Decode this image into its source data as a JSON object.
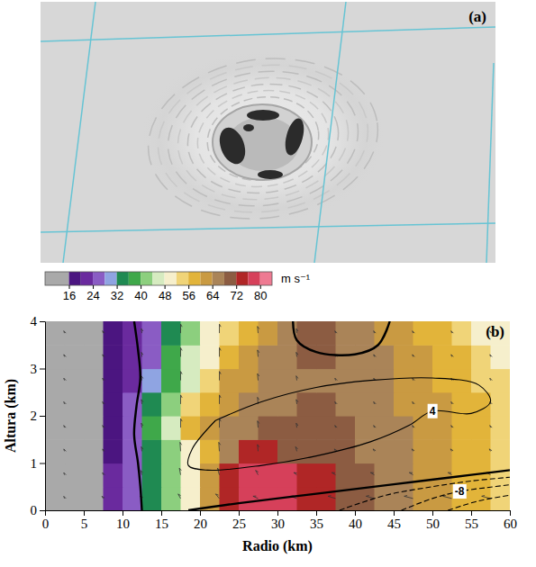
{
  "chart_data": [
    {
      "type": "image",
      "title": "(a)"
    },
    {
      "type": "heatmap",
      "title": "(b)",
      "xlabel": "Radio (km)",
      "ylabel": "Altura (km)",
      "xlim": [
        0,
        60
      ],
      "xticks": [
        0,
        5,
        10,
        15,
        20,
        25,
        30,
        35,
        40,
        45,
        50,
        55,
        60
      ],
      "ylim": [
        0,
        4
      ],
      "yticks": [
        0,
        1,
        2,
        3,
        4
      ],
      "grid": false,
      "x": [
        0,
        2.5,
        5,
        7.5,
        10,
        12.5,
        15,
        17.5,
        20,
        22.5,
        25,
        27.5,
        30,
        32.5,
        35,
        37.5,
        40,
        42.5,
        45,
        47.5,
        50,
        52.5,
        55,
        57.5,
        60
      ],
      "y": [
        0,
        0.5,
        1,
        1.5,
        2,
        2.5,
        3,
        3.5,
        4
      ],
      "z": [
        [
          6,
          10,
          14,
          20,
          26,
          34,
          42,
          50,
          62,
          74,
          78,
          78,
          77,
          75,
          73,
          70,
          68,
          66,
          64,
          62,
          60,
          58,
          56,
          54
        ],
        [
          6,
          10,
          14,
          20,
          26,
          34,
          42,
          50,
          62,
          74,
          78,
          78,
          77,
          74,
          73,
          71,
          69,
          67,
          65,
          63,
          61,
          59,
          57,
          55
        ],
        [
          6,
          9,
          13,
          18,
          24,
          32,
          40,
          48,
          58,
          66,
          72,
          73,
          71,
          70,
          69,
          68,
          67,
          66,
          64,
          62,
          60,
          58,
          56,
          54
        ],
        [
          6,
          9,
          12,
          18,
          26,
          36,
          46,
          56,
          60,
          64,
          66,
          68,
          68,
          68,
          68,
          68,
          67,
          66,
          64,
          62,
          60,
          58,
          56,
          54
        ],
        [
          6,
          9,
          12,
          18,
          24,
          32,
          42,
          52,
          58,
          62,
          64,
          66,
          67,
          68,
          68,
          67,
          66,
          64,
          63,
          62,
          60,
          58,
          56,
          54
        ],
        [
          6,
          9,
          12,
          18,
          22,
          28,
          38,
          46,
          54,
          60,
          63,
          65,
          66,
          67,
          67,
          66,
          65,
          64,
          62,
          60,
          58,
          56,
          54,
          52
        ],
        [
          6,
          9,
          12,
          18,
          22,
          26,
          36,
          44,
          50,
          56,
          60,
          64,
          66,
          68,
          68,
          66,
          65,
          64,
          62,
          60,
          58,
          56,
          54,
          50
        ],
        [
          6,
          9,
          12,
          18,
          22,
          26,
          34,
          42,
          48,
          54,
          58,
          62,
          65,
          68,
          68,
          66,
          64,
          62,
          60,
          58,
          56,
          54,
          50,
          48
        ]
      ],
      "colorbar": {
        "label": "m s⁻¹",
        "range": [
          8,
          84
        ],
        "ticks": [
          16,
          24,
          32,
          40,
          48,
          56,
          64,
          72,
          80
        ],
        "levels": [
          16,
          20,
          24,
          28,
          32,
          36,
          40,
          44,
          48,
          52,
          56,
          60,
          64,
          68,
          72,
          76,
          80
        ],
        "colors": [
          "#a9a9a9",
          "#4b1580",
          "#6a2a9e",
          "#8a5cc4",
          "#8fa4e2",
          "#1f8a52",
          "#3fa84a",
          "#8ccf7e",
          "#d6ebc0",
          "#f6efcc",
          "#f0d478",
          "#e2b43a",
          "#c99a42",
          "#aa8458",
          "#8c5c42",
          "#b02626",
          "#d6405a",
          "#ee7a92"
        ]
      },
      "contours": [
        {
          "value": 0,
          "line_style": "solid",
          "x": [
            12.5,
            12.3,
            12,
            11.5,
            11.8,
            12.3,
            12,
            11.5
          ],
          "y": [
            0,
            0.5,
            1,
            1.6,
            2.2,
            2.8,
            3.4,
            4
          ]
        },
        {
          "value": 0,
          "line_style": "solid",
          "x": [
            18.5,
            25,
            35,
            45,
            55,
            60
          ],
          "y": [
            0,
            0.15,
            0.35,
            0.55,
            0.75,
            0.85
          ]
        },
        {
          "value": 0,
          "line_style": "solid",
          "x": [
            32,
            32.5,
            35,
            40,
            43,
            44.5
          ],
          "y": [
            4,
            3.6,
            3.35,
            3.3,
            3.5,
            4
          ]
        },
        {
          "value": 4,
          "line_style": "solid",
          "data_labels": true,
          "x": [
            22,
            19,
            18.5,
            21,
            28,
            35,
            42,
            47,
            50,
            55,
            57.5,
            56,
            50,
            42,
            35,
            28,
            22
          ],
          "y": [
            1.9,
            1.3,
            0.95,
            0.85,
            0.95,
            1.15,
            1.45,
            1.8,
            2.1,
            2.05,
            2.3,
            2.65,
            2.8,
            2.75,
            2.6,
            2.3,
            1.9
          ]
        },
        {
          "value": -4,
          "line_style": "dashed",
          "x": [
            38,
            44,
            50,
            55,
            60
          ],
          "y": [
            0,
            0.32,
            0.5,
            0.62,
            0.7
          ]
        },
        {
          "value": -8,
          "line_style": "dashed",
          "data_labels": true,
          "x": [
            46,
            50,
            53.5,
            57,
            60
          ],
          "y": [
            0,
            0.25,
            0.4,
            0.48,
            0.54
          ]
        },
        {
          "value": -12,
          "line_style": "dashed",
          "x": [
            52,
            56,
            60
          ],
          "y": [
            0,
            0.2,
            0.32
          ]
        }
      ],
      "vectors": {
        "x": [
          2.5,
          7.5,
          12.5,
          17.5,
          22.5,
          27.5,
          32.5,
          37.5,
          42.5,
          47.5,
          52.5,
          57.5
        ],
        "y": [
          0.25,
          0.75,
          1.25,
          1.75,
          2.25,
          2.75,
          3.25,
          3.75
        ],
        "u": [
          [
            -1,
            -2,
            -3,
            -4,
            -6,
            -8,
            -10,
            -12,
            -13,
            -14,
            -14,
            -14
          ],
          [
            -1,
            -1,
            -2,
            -2,
            -3,
            -4,
            -5,
            -6,
            -6,
            -6,
            -6,
            -6
          ],
          [
            -1,
            -1,
            -1,
            -1,
            -1,
            -1,
            -2,
            -2,
            -2,
            -2,
            -2,
            -2
          ],
          [
            -1,
            -1,
            -1,
            0,
            0,
            -1,
            -1,
            -1,
            -1,
            -1,
            -1,
            -1
          ],
          [
            -1,
            -1,
            -1,
            0,
            0,
            -1,
            -1,
            -1,
            -1,
            -1,
            -1,
            -1
          ],
          [
            -1,
            -1,
            -1,
            0,
            0,
            -1,
            -1,
            -1,
            -1,
            -1,
            -1,
            -1
          ],
          [
            -1,
            -1,
            -1,
            0,
            0,
            -1,
            -1,
            -1,
            -1,
            -1,
            -1,
            -1
          ],
          [
            -1,
            -1,
            -1,
            0,
            0,
            -1,
            -1,
            -1,
            -1,
            -1,
            -1,
            -1
          ]
        ],
        "w": [
          [
            1,
            1,
            1,
            2,
            2,
            1,
            1,
            1,
            1,
            1,
            1,
            1
          ],
          [
            1,
            1,
            2,
            3,
            3,
            2,
            1,
            1,
            1,
            1,
            1,
            1
          ],
          [
            1,
            1,
            2,
            4,
            4,
            3,
            2,
            1,
            1,
            1,
            1,
            1
          ],
          [
            1,
            1,
            2,
            4,
            4,
            3,
            2,
            1,
            1,
            1,
            1,
            1
          ],
          [
            1,
            1,
            2,
            4,
            4,
            3,
            2,
            1,
            1,
            1,
            1,
            1
          ],
          [
            1,
            1,
            2,
            4,
            4,
            3,
            2,
            1,
            1,
            1,
            1,
            1
          ],
          [
            1,
            1,
            2,
            4,
            4,
            3,
            2,
            1,
            1,
            1,
            1,
            1
          ],
          [
            1,
            1,
            2,
            4,
            4,
            3,
            2,
            1,
            1,
            1,
            1,
            1
          ]
        ]
      }
    }
  ]
}
